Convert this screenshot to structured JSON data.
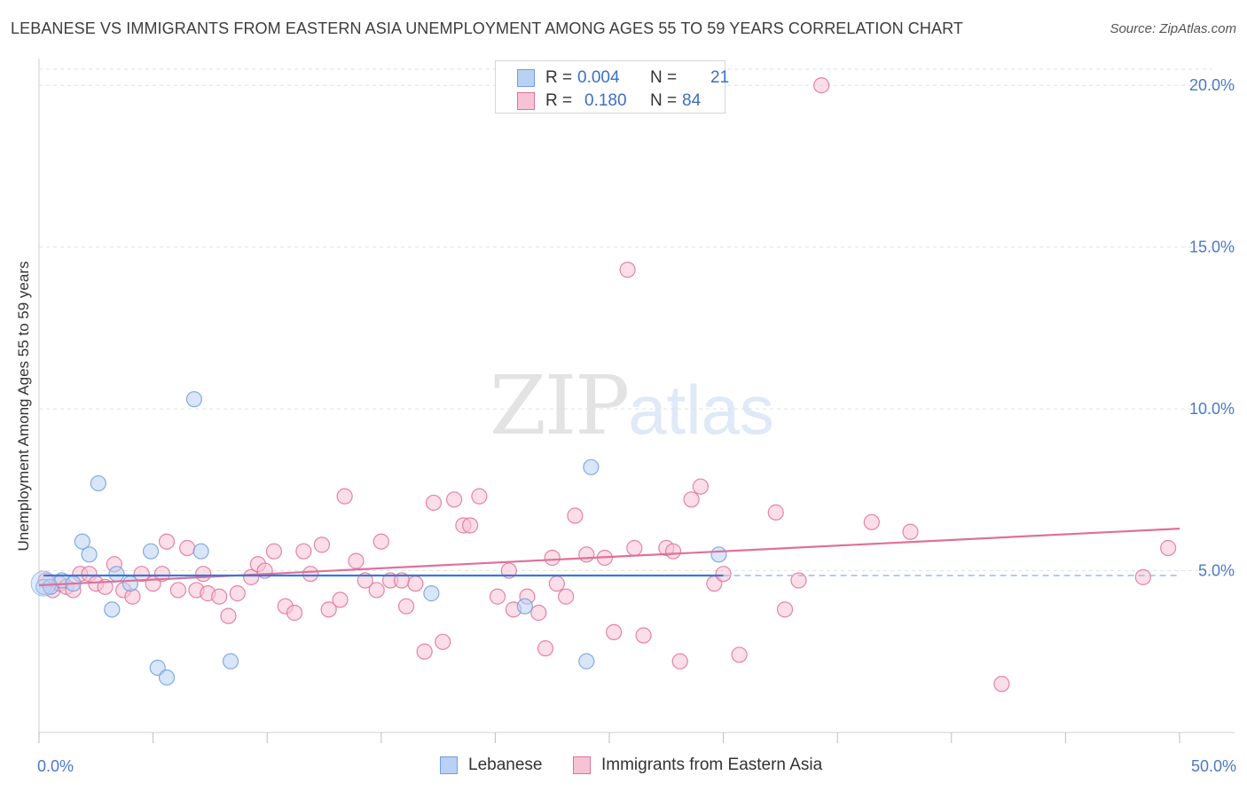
{
  "title": "LEBANESE VS IMMIGRANTS FROM EASTERN ASIA UNEMPLOYMENT AMONG AGES 55 TO 59 YEARS CORRELATION CHART",
  "source": "Source: ZipAtlas.com",
  "watermark": {
    "zip": "ZIP",
    "atlas": "atlas"
  },
  "legend_stats": {
    "series1": {
      "r_label": "R =",
      "r_value": "0.004",
      "n_label": "N =",
      "n_value": "21"
    },
    "series2": {
      "r_label": "R =",
      "r_value": "0.180",
      "n_label": "N =",
      "n_value": "84"
    }
  },
  "chart_data": {
    "type": "scatter",
    "title": "LEBANESE VS IMMIGRANTS FROM EASTERN ASIA UNEMPLOYMENT AMONG AGES 55 TO 59 YEARS CORRELATION CHART",
    "xlabel": "",
    "ylabel": "Unemployment Among Ages 55 to 59 years",
    "xlim": [
      0,
      50
    ],
    "ylim": [
      0,
      20.5
    ],
    "x_tick_labels": [
      "0.0%",
      "50.0%"
    ],
    "y_ticks": [
      5,
      10,
      15,
      20
    ],
    "y_tick_labels": [
      "5.0%",
      "10.0%",
      "15.0%",
      "20.0%"
    ],
    "grid": true,
    "legend_position": "bottom",
    "series": [
      {
        "name": "Lebanese",
        "color": "#6f9fe0",
        "fill": "#b9d1f3",
        "r": 0.004,
        "n": 21,
        "trend": {
          "x0": 0.2,
          "y0": 4.85,
          "x1": 30,
          "y1": 4.85,
          "dashed_to": 50
        },
        "points": [
          {
            "x": 0.2,
            "y": 4.5
          },
          {
            "x": 0.5,
            "y": 4.5
          },
          {
            "x": 1.0,
            "y": 4.7
          },
          {
            "x": 1.5,
            "y": 4.6
          },
          {
            "x": 1.9,
            "y": 5.9
          },
          {
            "x": 2.2,
            "y": 5.5
          },
          {
            "x": 2.6,
            "y": 7.7
          },
          {
            "x": 3.2,
            "y": 3.8
          },
          {
            "x": 3.4,
            "y": 4.9
          },
          {
            "x": 4.0,
            "y": 4.6
          },
          {
            "x": 4.9,
            "y": 5.6
          },
          {
            "x": 5.2,
            "y": 2.0
          },
          {
            "x": 5.6,
            "y": 1.7
          },
          {
            "x": 6.8,
            "y": 10.3
          },
          {
            "x": 7.1,
            "y": 5.6
          },
          {
            "x": 8.4,
            "y": 2.2
          },
          {
            "x": 17.2,
            "y": 4.3
          },
          {
            "x": 21.3,
            "y": 3.9
          },
          {
            "x": 24.0,
            "y": 2.2
          },
          {
            "x": 24.2,
            "y": 8.2
          },
          {
            "x": 29.8,
            "y": 5.5
          }
        ]
      },
      {
        "name": "Immigrants from Eastern Asia",
        "color": "#e0709a",
        "fill": "#f7c3d4",
        "r": 0.18,
        "n": 84,
        "trend": {
          "x0": 0,
          "y0": 4.55,
          "x1": 50,
          "y1": 6.3
        },
        "points": [
          {
            "x": 0.3,
            "y": 4.7
          },
          {
            "x": 0.6,
            "y": 4.4
          },
          {
            "x": 0.9,
            "y": 4.6
          },
          {
            "x": 1.2,
            "y": 4.5
          },
          {
            "x": 1.5,
            "y": 4.4
          },
          {
            "x": 1.8,
            "y": 4.9
          },
          {
            "x": 2.2,
            "y": 4.9
          },
          {
            "x": 2.5,
            "y": 4.6
          },
          {
            "x": 2.9,
            "y": 4.5
          },
          {
            "x": 3.3,
            "y": 5.2
          },
          {
            "x": 3.7,
            "y": 4.4
          },
          {
            "x": 4.1,
            "y": 4.2
          },
          {
            "x": 4.5,
            "y": 4.9
          },
          {
            "x": 5.0,
            "y": 4.6
          },
          {
            "x": 5.4,
            "y": 4.9
          },
          {
            "x": 5.6,
            "y": 5.9
          },
          {
            "x": 6.1,
            "y": 4.4
          },
          {
            "x": 6.5,
            "y": 5.7
          },
          {
            "x": 6.9,
            "y": 4.4
          },
          {
            "x": 7.2,
            "y": 4.9
          },
          {
            "x": 7.4,
            "y": 4.3
          },
          {
            "x": 7.9,
            "y": 4.2
          },
          {
            "x": 8.3,
            "y": 3.6
          },
          {
            "x": 8.7,
            "y": 4.3
          },
          {
            "x": 9.3,
            "y": 4.8
          },
          {
            "x": 9.6,
            "y": 5.2
          },
          {
            "x": 9.9,
            "y": 5.0
          },
          {
            "x": 10.3,
            "y": 5.6
          },
          {
            "x": 10.8,
            "y": 3.9
          },
          {
            "x": 11.2,
            "y": 3.7
          },
          {
            "x": 11.6,
            "y": 5.6
          },
          {
            "x": 11.9,
            "y": 4.9
          },
          {
            "x": 12.4,
            "y": 5.8
          },
          {
            "x": 12.7,
            "y": 3.8
          },
          {
            "x": 13.2,
            "y": 4.1
          },
          {
            "x": 13.4,
            "y": 7.3
          },
          {
            "x": 13.9,
            "y": 5.3
          },
          {
            "x": 14.3,
            "y": 4.7
          },
          {
            "x": 14.8,
            "y": 4.4
          },
          {
            "x": 15.0,
            "y": 5.9
          },
          {
            "x": 15.4,
            "y": 4.7
          },
          {
            "x": 15.9,
            "y": 4.7
          },
          {
            "x": 16.1,
            "y": 3.9
          },
          {
            "x": 16.5,
            "y": 4.6
          },
          {
            "x": 16.9,
            "y": 2.5
          },
          {
            "x": 17.3,
            "y": 7.1
          },
          {
            "x": 17.7,
            "y": 2.8
          },
          {
            "x": 18.2,
            "y": 7.2
          },
          {
            "x": 18.6,
            "y": 6.4
          },
          {
            "x": 18.9,
            "y": 6.4
          },
          {
            "x": 19.3,
            "y": 7.3
          },
          {
            "x": 20.1,
            "y": 4.2
          },
          {
            "x": 20.6,
            "y": 5.0
          },
          {
            "x": 20.8,
            "y": 3.8
          },
          {
            "x": 21.4,
            "y": 4.2
          },
          {
            "x": 21.9,
            "y": 3.7
          },
          {
            "x": 22.2,
            "y": 2.6
          },
          {
            "x": 22.5,
            "y": 5.4
          },
          {
            "x": 22.7,
            "y": 4.6
          },
          {
            "x": 23.1,
            "y": 4.2
          },
          {
            "x": 23.5,
            "y": 6.7
          },
          {
            "x": 24.0,
            "y": 5.5
          },
          {
            "x": 24.8,
            "y": 5.4
          },
          {
            "x": 25.2,
            "y": 3.1
          },
          {
            "x": 25.8,
            "y": 14.3
          },
          {
            "x": 26.1,
            "y": 5.7
          },
          {
            "x": 26.5,
            "y": 3.0
          },
          {
            "x": 27.5,
            "y": 5.7
          },
          {
            "x": 27.8,
            "y": 5.6
          },
          {
            "x": 28.1,
            "y": 2.2
          },
          {
            "x": 28.6,
            "y": 7.2
          },
          {
            "x": 29.0,
            "y": 7.6
          },
          {
            "x": 29.6,
            "y": 4.6
          },
          {
            "x": 30.0,
            "y": 4.9
          },
          {
            "x": 30.7,
            "y": 2.4
          },
          {
            "x": 32.3,
            "y": 6.8
          },
          {
            "x": 32.7,
            "y": 3.8
          },
          {
            "x": 33.3,
            "y": 4.7
          },
          {
            "x": 34.3,
            "y": 20.0
          },
          {
            "x": 36.5,
            "y": 6.5
          },
          {
            "x": 38.2,
            "y": 6.2
          },
          {
            "x": 42.2,
            "y": 1.5
          },
          {
            "x": 48.4,
            "y": 4.8
          },
          {
            "x": 49.5,
            "y": 5.7
          }
        ]
      }
    ]
  }
}
